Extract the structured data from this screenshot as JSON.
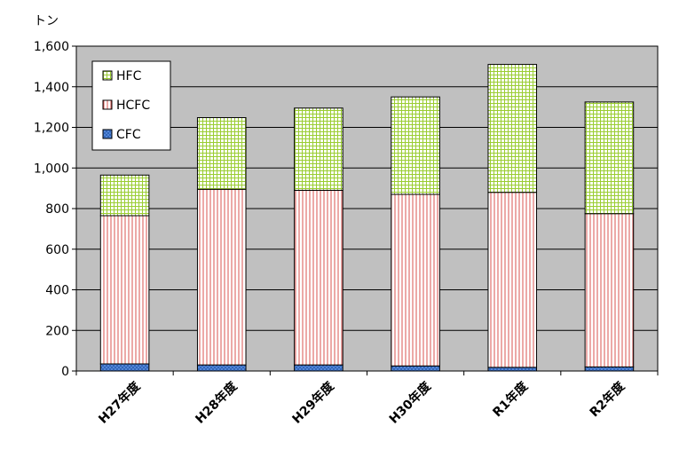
{
  "chart_data": {
    "type": "bar",
    "stacked": true,
    "title": "",
    "y_unit_label": "トン",
    "xlabel": "",
    "ylabel": "",
    "categories": [
      "H27年度",
      "H28年度",
      "H29年度",
      "H30年度",
      "R1年度",
      "R2年度"
    ],
    "series": [
      {
        "name": "CFC",
        "values": [
          35,
          30,
          30,
          25,
          18,
          20
        ]
      },
      {
        "name": "HCFC",
        "values": [
          730,
          865,
          860,
          845,
          862,
          755
        ]
      },
      {
        "name": "HFC",
        "values": [
          200,
          353,
          405,
          480,
          630,
          550
        ]
      }
    ],
    "ylim": [
      0,
      1600
    ],
    "yticks": [
      {
        "value": 0,
        "label": "0"
      },
      {
        "value": 200,
        "label": "200"
      },
      {
        "value": 400,
        "label": "400"
      },
      {
        "value": 600,
        "label": "600"
      },
      {
        "value": 800,
        "label": "800"
      },
      {
        "value": 1000,
        "label": "1,000"
      },
      {
        "value": 1200,
        "label": "1,200"
      },
      {
        "value": 1400,
        "label": "1,400"
      },
      {
        "value": 1600,
        "label": "1,600"
      }
    ],
    "grid": true,
    "plot_background": "#c0c0c0",
    "legend_position": "top-left",
    "legend_order": [
      "HFC",
      "HCFC",
      "CFC"
    ],
    "colors": {
      "CFC": "#4a7fd4",
      "HCFC": "#d9534f",
      "HFC": "#9acd32"
    }
  }
}
